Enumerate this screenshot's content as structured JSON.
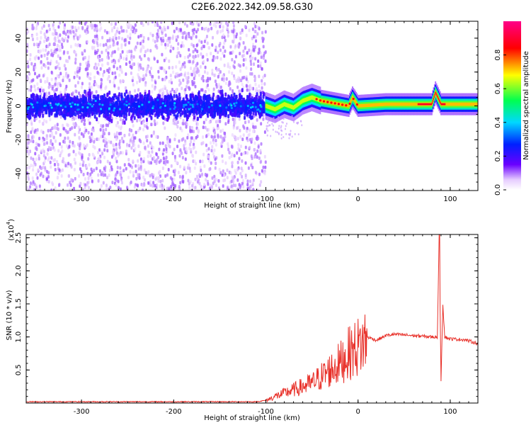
{
  "title": "C2E6.2022.342.09.58.G30",
  "chart_data": [
    {
      "type": "heatmap",
      "xlabel": "Height of straight line (km)",
      "ylabel": "Frequency (Hz)",
      "xlim": [
        -360,
        130
      ],
      "ylim": [
        -50,
        50
      ],
      "xticks": [
        -300,
        -200,
        -100,
        0,
        100
      ],
      "yticks": [
        -40,
        -20,
        0,
        20,
        40
      ],
      "colorbar": {
        "label": "Normalized spectral amplitude",
        "range": [
          0,
          1
        ],
        "ticks": [
          "0.0",
          "0.2",
          "0.4",
          "0.6",
          "0.8"
        ],
        "colormap": [
          "#ffffff",
          "#6a00ff",
          "#0000ff",
          "#00e0ff",
          "#00ff40",
          "#ffff00",
          "#ff0000",
          "#ff0080"
        ]
      },
      "ridge": [
        {
          "x": -100,
          "f": 0
        },
        {
          "x": -90,
          "f": -2
        },
        {
          "x": -80,
          "f": 1
        },
        {
          "x": -70,
          "f": -1
        },
        {
          "x": -60,
          "f": 3
        },
        {
          "x": -50,
          "f": 5
        },
        {
          "x": -40,
          "f": 3
        },
        {
          "x": -30,
          "f": 2
        },
        {
          "x": -20,
          "f": 1
        },
        {
          "x": -10,
          "f": 0
        },
        {
          "x": -6,
          "f": 5
        },
        {
          "x": 0,
          "f": 0
        },
        {
          "x": 30,
          "f": 1
        },
        {
          "x": 80,
          "f": 1
        },
        {
          "x": 84,
          "f": 8
        },
        {
          "x": 90,
          "f": 1
        },
        {
          "x": 100,
          "f": 1
        },
        {
          "x": 130,
          "f": 1
        }
      ]
    },
    {
      "type": "line",
      "xlabel": "Height of straight line (km)",
      "ylabel": "SNR (10 * v/v)",
      "yscale_label": "(x10",
      "yscale_exp": "4",
      "xlim": [
        -360,
        130
      ],
      "ylim": [
        0,
        2.55
      ],
      "xticks": [
        -300,
        -200,
        -100,
        0,
        100
      ],
      "yticks": [
        "0.5",
        "1.0",
        "1.5",
        "2.0",
        "2.5"
      ],
      "color": "#e8312a",
      "series": [
        {
          "x": [
            -360,
            -250,
            -110,
            -100,
            -90,
            -80,
            -70,
            -60,
            -50,
            -40,
            -30,
            -20,
            -10,
            0,
            5,
            10,
            20,
            30,
            40,
            60,
            80,
            86,
            88,
            90,
            92,
            94,
            100,
            115,
            130
          ],
          "y": [
            0.02,
            0.02,
            0.02,
            0.04,
            0.1,
            0.15,
            0.2,
            0.25,
            0.3,
            0.4,
            0.5,
            0.6,
            0.75,
            0.85,
            0.9,
            1.0,
            0.95,
            1.02,
            1.04,
            1.02,
            1.0,
            1.0,
            2.55,
            0.35,
            1.5,
            1.0,
            0.97,
            0.96,
            0.9
          ]
        }
      ]
    }
  ]
}
